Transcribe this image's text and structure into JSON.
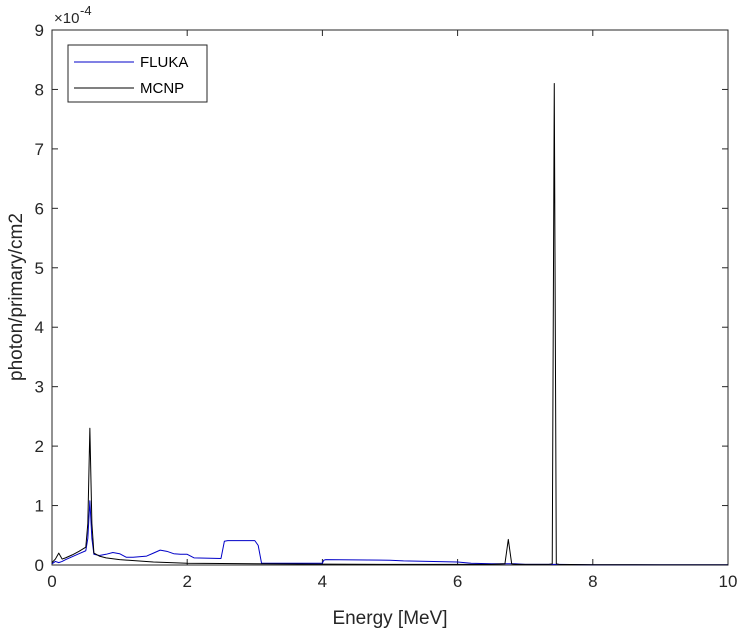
{
  "chart_data": {
    "type": "line",
    "xlabel": "Energy [MeV]",
    "ylabel": "photon/primary/cm2",
    "xlim": [
      0,
      10
    ],
    "ylim": [
      0,
      9
    ],
    "x_ticks": [
      "0",
      "2",
      "4",
      "6",
      "8",
      "10"
    ],
    "y_ticks": [
      "0",
      "1",
      "2",
      "3",
      "4",
      "5",
      "6",
      "7",
      "8",
      "9"
    ],
    "y_exponent": {
      "base": "×10",
      "power": "-4"
    },
    "legend_position": "top-left",
    "grid": false,
    "series": [
      {
        "name": "FLUKA",
        "color": "#0000c8",
        "x": [
          0,
          0.05,
          0.1,
          0.15,
          0.2,
          0.3,
          0.4,
          0.5,
          0.53,
          0.56,
          0.59,
          0.62,
          0.7,
          0.8,
          0.9,
          1.0,
          1.1,
          1.2,
          1.4,
          1.5,
          1.6,
          1.7,
          1.8,
          1.9,
          2.0,
          2.1,
          2.5,
          2.55,
          2.6,
          3.0,
          3.05,
          3.1,
          3.2,
          4.0,
          4.02,
          4.05,
          5.0,
          5.2,
          6.0,
          6.2,
          6.5,
          6.7,
          6.75,
          6.8,
          6.85,
          7.0,
          7.4,
          7.45,
          7.5,
          8.0,
          9.0,
          10.0
        ],
        "y": [
          0.02,
          0.06,
          0.04,
          0.06,
          0.09,
          0.14,
          0.19,
          0.24,
          0.45,
          1.08,
          0.45,
          0.18,
          0.16,
          0.18,
          0.21,
          0.19,
          0.13,
          0.13,
          0.15,
          0.2,
          0.25,
          0.23,
          0.19,
          0.18,
          0.18,
          0.12,
          0.11,
          0.4,
          0.41,
          0.41,
          0.33,
          0.03,
          0.03,
          0.03,
          0.08,
          0.09,
          0.08,
          0.07,
          0.05,
          0.03,
          0.02,
          0.02,
          0.02,
          0.02,
          0.02,
          0.01,
          0.01,
          0.01,
          0.01,
          0.005,
          0.005,
          0.005
        ]
      },
      {
        "name": "MCNP",
        "color": "#000000",
        "x": [
          0,
          0.05,
          0.1,
          0.15,
          0.2,
          0.3,
          0.4,
          0.5,
          0.53,
          0.56,
          0.59,
          0.62,
          0.7,
          0.8,
          1.0,
          1.5,
          2.0,
          3.0,
          4.0,
          5.0,
          6.0,
          6.5,
          6.7,
          6.75,
          6.8,
          6.85,
          7.0,
          7.35,
          7.4,
          7.43,
          7.46,
          7.5,
          8.0,
          9.0,
          10.0
        ],
        "y": [
          0.04,
          0.1,
          0.2,
          0.1,
          0.12,
          0.17,
          0.23,
          0.3,
          0.7,
          2.3,
          0.7,
          0.2,
          0.15,
          0.12,
          0.09,
          0.05,
          0.03,
          0.02,
          0.015,
          0.01,
          0.01,
          0.01,
          0.02,
          0.43,
          0.02,
          0.01,
          0.01,
          0.01,
          0.02,
          8.1,
          0.02,
          0.01,
          0.005,
          0.003,
          0.002
        ]
      }
    ]
  }
}
